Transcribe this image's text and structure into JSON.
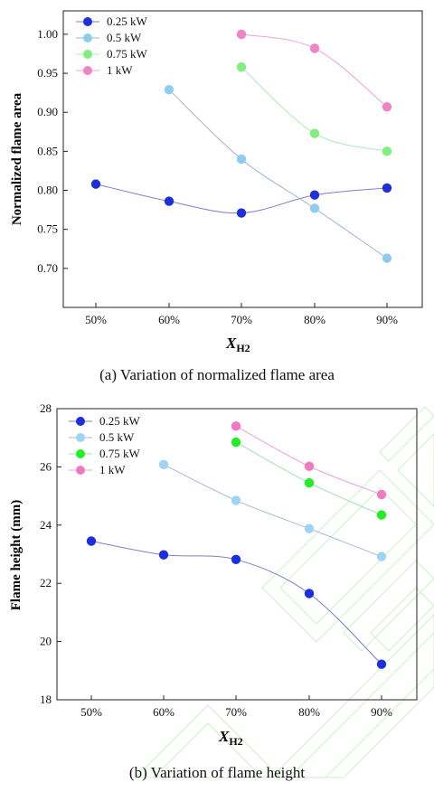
{
  "chart_data": [
    {
      "type": "line",
      "caption": "(a) Variation of normalized flame area",
      "xlabel": "X",
      "xlabel_sub": "H2",
      "ylabel": "Normalized flame area",
      "categories": [
        "50%",
        "60%",
        "70%",
        "80%",
        "90%"
      ],
      "ylim": [
        0.65,
        1.03
      ],
      "yticks": [
        0.7,
        0.75,
        0.8,
        0.85,
        0.9,
        0.95,
        1.0
      ],
      "ytick_labels": [
        "0.70",
        "0.75",
        "0.80",
        "0.85",
        "0.90",
        "0.95",
        "1.00"
      ],
      "grid": false,
      "legend_position": "top-left",
      "series": [
        {
          "name": "0.25 kW",
          "color": "#2030d8",
          "line_color": "#7a7fc8",
          "x": [
            "50%",
            "60%",
            "70%",
            "80%",
            "90%"
          ],
          "values": [
            0.808,
            0.786,
            0.771,
            0.794,
            0.803
          ]
        },
        {
          "name": "0.5 kW",
          "color": "#8fcdf0",
          "line_color": "#9fb0d4",
          "x": [
            "60%",
            "70%",
            "80%",
            "90%"
          ],
          "values": [
            0.929,
            0.84,
            0.777,
            0.713
          ]
        },
        {
          "name": "0.75 kW",
          "color": "#80ee80",
          "line_color": "#a8ecb8",
          "x": [
            "70%",
            "80%",
            "90%"
          ],
          "values": [
            0.958,
            0.873,
            0.85
          ]
        },
        {
          "name": "1 kW",
          "color": "#f082c8",
          "line_color": "#f0a0d8",
          "x": [
            "70%",
            "80%",
            "90%"
          ],
          "values": [
            1.0,
            0.982,
            0.907
          ]
        }
      ]
    },
    {
      "type": "line",
      "caption": "(b) Variation of flame height",
      "xlabel": "X",
      "xlabel_sub": "H2",
      "ylabel": "Flame height (mm)",
      "categories": [
        "50%",
        "60%",
        "70%",
        "80%",
        "90%"
      ],
      "ylim": [
        18,
        28
      ],
      "yticks": [
        18,
        20,
        22,
        24,
        26,
        28
      ],
      "ytick_labels": [
        "18",
        "20",
        "22",
        "24",
        "26",
        "28"
      ],
      "grid": false,
      "legend_position": "top-left",
      "series": [
        {
          "name": "0.25 kW",
          "color": "#1c2ee0",
          "line_color": "#7a7fc8",
          "x": [
            "50%",
            "60%",
            "70%",
            "80%",
            "90%"
          ],
          "values": [
            23.45,
            22.98,
            22.82,
            21.65,
            19.22
          ]
        },
        {
          "name": "0.5 kW",
          "color": "#9fd4f2",
          "line_color": "#a6b8dc",
          "x": [
            "60%",
            "70%",
            "80%",
            "90%"
          ],
          "values": [
            26.08,
            24.85,
            23.88,
            22.92
          ]
        },
        {
          "name": "0.75 kW",
          "color": "#22ee22",
          "line_color": "#a0e0b0",
          "x": [
            "70%",
            "80%",
            "90%"
          ],
          "values": [
            26.85,
            25.45,
            24.35
          ]
        },
        {
          "name": "1 kW",
          "color": "#f07ac2",
          "line_color": "#f0a0d8",
          "x": [
            "70%",
            "80%",
            "90%"
          ],
          "values": [
            27.4,
            26.02,
            25.05
          ]
        }
      ]
    }
  ]
}
